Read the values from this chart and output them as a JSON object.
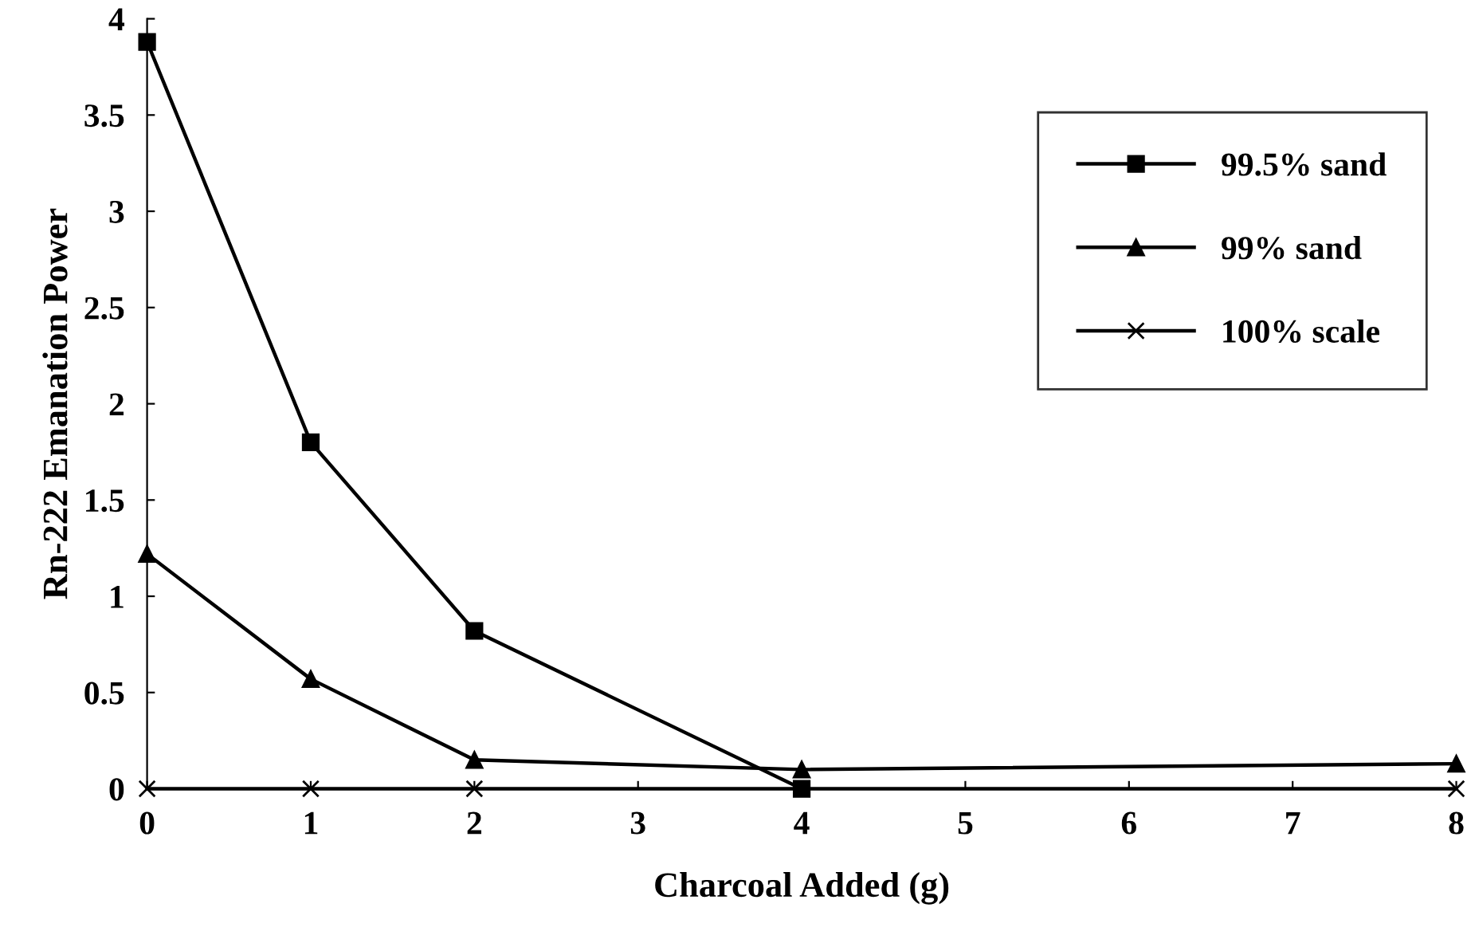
{
  "chart_data": {
    "type": "line",
    "xlabel": "Charcoal Added (g)",
    "ylabel": "Rn-222 Emanation Power",
    "xlim": [
      0,
      8
    ],
    "xticks": [
      0,
      1,
      2,
      3,
      4,
      5,
      6,
      7,
      8
    ],
    "ylim": [
      0,
      4
    ],
    "yticks": [
      0,
      0.5,
      1,
      1.5,
      2,
      2.5,
      3,
      3.5,
      4
    ],
    "grid": false,
    "legend": "top right",
    "line_style": "solid",
    "series": [
      {
        "name": "99.5% sand",
        "color": "#000000",
        "marker": "square",
        "x": [
          0,
          1,
          2,
          4
        ],
        "values": [
          3.88,
          1.8,
          0.82,
          0
        ]
      },
      {
        "name": "99% sand",
        "color": "#000000",
        "marker": "triangle",
        "x": [
          0,
          1,
          2,
          4,
          8
        ],
        "values": [
          1.22,
          0.57,
          0.15,
          0.1,
          0.13
        ]
      },
      {
        "name": "100% scale",
        "color": "#000000",
        "marker": "cross",
        "x": [
          0,
          1,
          2,
          4,
          8
        ],
        "values": [
          0,
          0,
          0,
          0,
          0
        ]
      }
    ]
  }
}
